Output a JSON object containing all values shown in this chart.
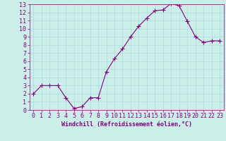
{
  "x": [
    0,
    1,
    2,
    3,
    4,
    5,
    6,
    7,
    8,
    9,
    10,
    11,
    12,
    13,
    14,
    15,
    16,
    17,
    18,
    19,
    20,
    21,
    22,
    23
  ],
  "y": [
    2,
    3,
    3,
    3,
    1.5,
    0.2,
    0.4,
    1.5,
    1.5,
    4.7,
    6.3,
    7.5,
    9,
    10.3,
    11.3,
    12.2,
    12.3,
    13.1,
    12.8,
    10.9,
    9,
    8.3,
    8.5,
    8.5
  ],
  "line_color": "#800080",
  "marker": "+",
  "marker_size": 4,
  "background_color": "#cceee8",
  "grid_color": "#aadddd",
  "xlabel": "Windchill (Refroidissement éolien,°C)",
  "xlim": [
    -0.5,
    23.5
  ],
  "ylim": [
    0,
    13
  ],
  "xticks": [
    0,
    1,
    2,
    3,
    4,
    5,
    6,
    7,
    8,
    9,
    10,
    11,
    12,
    13,
    14,
    15,
    16,
    17,
    18,
    19,
    20,
    21,
    22,
    23
  ],
  "yticks": [
    0,
    1,
    2,
    3,
    4,
    5,
    6,
    7,
    8,
    9,
    10,
    11,
    12,
    13
  ],
  "tick_color": "#800080",
  "label_color": "#800080",
  "spine_color": "#800080",
  "axis_fontsize": 6,
  "tick_fontsize": 6
}
